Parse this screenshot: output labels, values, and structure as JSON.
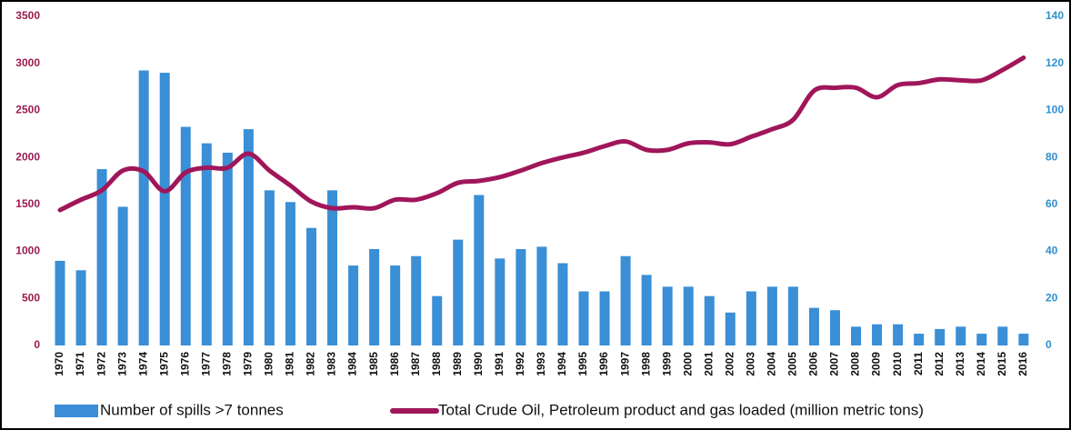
{
  "chart_data": {
    "type": "bar",
    "categories": [
      "1970",
      "1971",
      "1972",
      "1973",
      "1974",
      "1975",
      "1976",
      "1977",
      "1978",
      "1979",
      "1980",
      "1981",
      "1982",
      "1983",
      "1984",
      "1985",
      "1986",
      "1987",
      "1988",
      "1989",
      "1990",
      "1991",
      "1992",
      "1993",
      "1994",
      "1995",
      "1996",
      "1997",
      "1998",
      "1999",
      "2000",
      "2001",
      "2002",
      "2003",
      "2004",
      "2005",
      "2006",
      "2007",
      "2008",
      "2009",
      "2010",
      "2011",
      "2012",
      "2013",
      "2014",
      "2015",
      "2016"
    ],
    "series": [
      {
        "name": "Number of spills >7 tonnes",
        "type": "bar",
        "axis": "y2",
        "color": "#3a8fd6",
        "values": [
          36,
          32,
          75,
          59,
          117,
          116,
          93,
          86,
          82,
          92,
          66,
          61,
          50,
          66,
          34,
          41,
          34,
          38,
          21,
          45,
          64,
          37,
          41,
          42,
          35,
          23,
          23,
          38,
          30,
          25,
          25,
          21,
          14,
          23,
          25,
          25,
          16,
          15,
          8,
          9,
          9,
          5,
          7,
          8,
          5,
          8,
          5
        ]
      },
      {
        "name": "Total Crude Oil, Petroleum product and gas loaded (million metric tons)",
        "type": "line",
        "color": "#a0165a",
        "values": [
          1440,
          1550,
          1650,
          1860,
          1850,
          1640,
          1840,
          1890,
          1890,
          2040,
          1860,
          1700,
          1530,
          1460,
          1470,
          1460,
          1550,
          1550,
          1620,
          1730,
          1750,
          1790,
          1860,
          1940,
          2000,
          2050,
          2120,
          2170,
          2080,
          2080,
          2150,
          2160,
          2140,
          2220,
          2300,
          2400,
          2710,
          2740,
          2740,
          2640,
          2770,
          2790,
          2830,
          2820,
          2820,
          2930,
          3060
        ]
      }
    ],
    "ylim": [
      0,
      3500
    ],
    "yticks": [
      0,
      500,
      1000,
      1500,
      2000,
      2500,
      3000,
      3500
    ],
    "y2lim": [
      0,
      140
    ],
    "y2ticks": [
      0,
      20,
      40,
      60,
      80,
      100,
      120,
      140
    ],
    "legend": "bottom"
  }
}
